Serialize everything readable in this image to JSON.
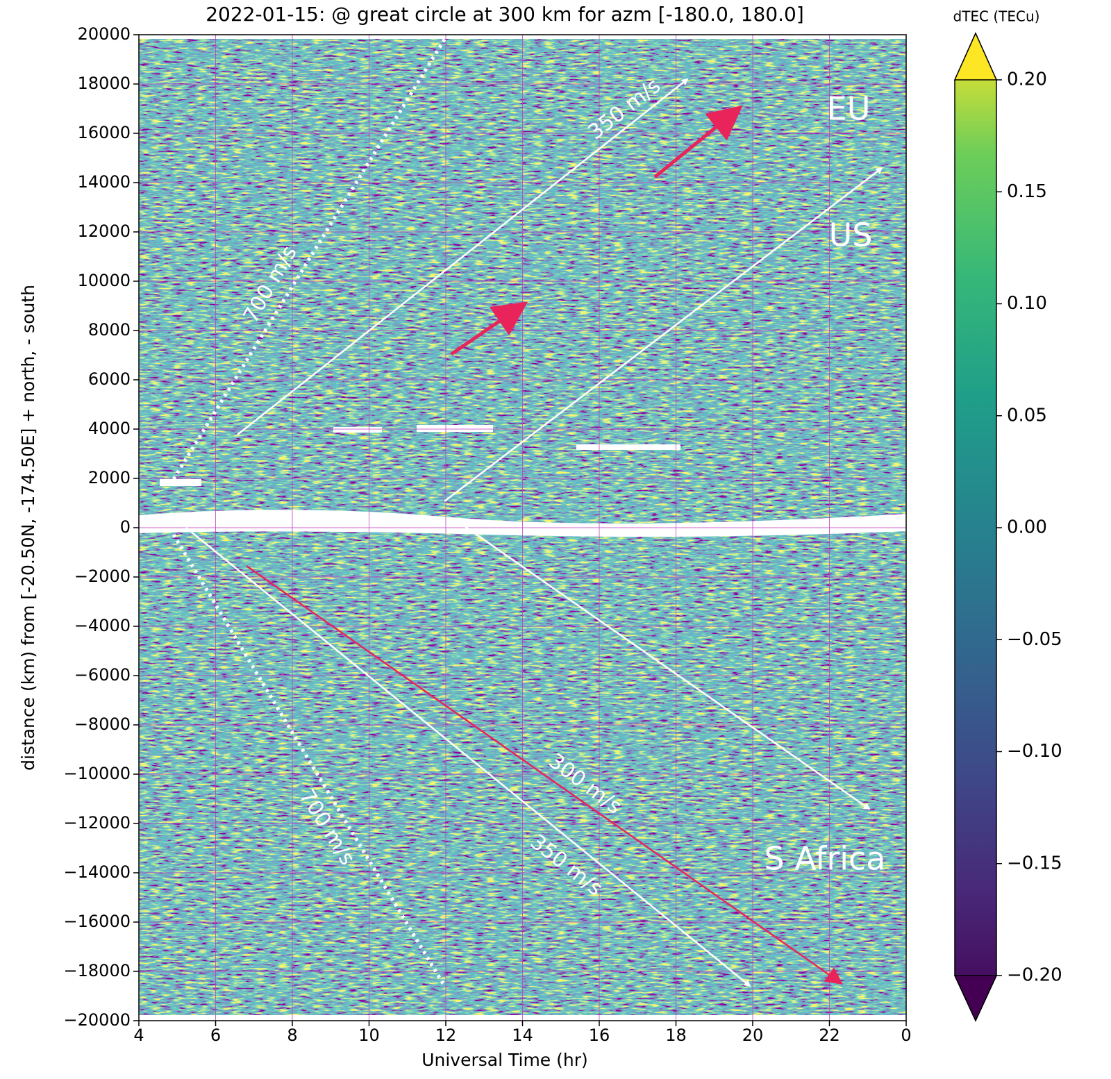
{
  "chart_data": {
    "type": "heatmap",
    "title": "2022-01-15:  @  great circle at 300 km for azm [-180.0, 180.0]",
    "x_label": "Universal Time (hr)",
    "y_label": "distance (km) from [-20.50N, -174.50E] + north, - south",
    "xlim": [
      4,
      24
    ],
    "xticks": [
      4,
      6,
      8,
      10,
      12,
      14,
      16,
      18,
      20,
      22,
      {
        "value": 24,
        "label": "0"
      }
    ],
    "ylim": [
      -20000,
      20000
    ],
    "yticks": [
      {
        "value": -20000,
        "label": "−20000"
      },
      {
        "value": -18000,
        "label": "−18000"
      },
      {
        "value": -16000,
        "label": "−16000"
      },
      {
        "value": -14000,
        "label": "−14000"
      },
      {
        "value": -12000,
        "label": "−12000"
      },
      {
        "value": -10000,
        "label": "−10000"
      },
      {
        "value": -8000,
        "label": "−8000"
      },
      {
        "value": -6000,
        "label": "−6000"
      },
      {
        "value": -4000,
        "label": "−4000"
      },
      {
        "value": -2000,
        "label": "−2000"
      },
      0,
      2000,
      4000,
      6000,
      8000,
      10000,
      12000,
      14000,
      16000,
      18000,
      20000
    ],
    "grid": true,
    "grid_color": "#c040c0",
    "colormap": "viridis",
    "colorbar": {
      "label": "dTEC (TECu)",
      "lim": [
        -0.2,
        0.2
      ],
      "ticks": [
        {
          "value": 0.2,
          "label": "0.20"
        },
        0.15,
        {
          "value": 0.1,
          "label": "0.10"
        },
        0.05,
        {
          "value": 0,
          "label": "0.00"
        },
        {
          "value": -0.05,
          "label": "−0.05"
        },
        {
          "value": -0.1,
          "label": "−0.10"
        },
        {
          "value": -0.15,
          "label": "−0.15"
        },
        {
          "value": -0.2,
          "label": "−0.20"
        }
      ]
    },
    "annotations": [
      "700 m/s",
      "700 m/s",
      "350 m/s",
      "300 m/s",
      "350 m/s",
      "EU",
      "US",
      "S Africa"
    ]
  }
}
